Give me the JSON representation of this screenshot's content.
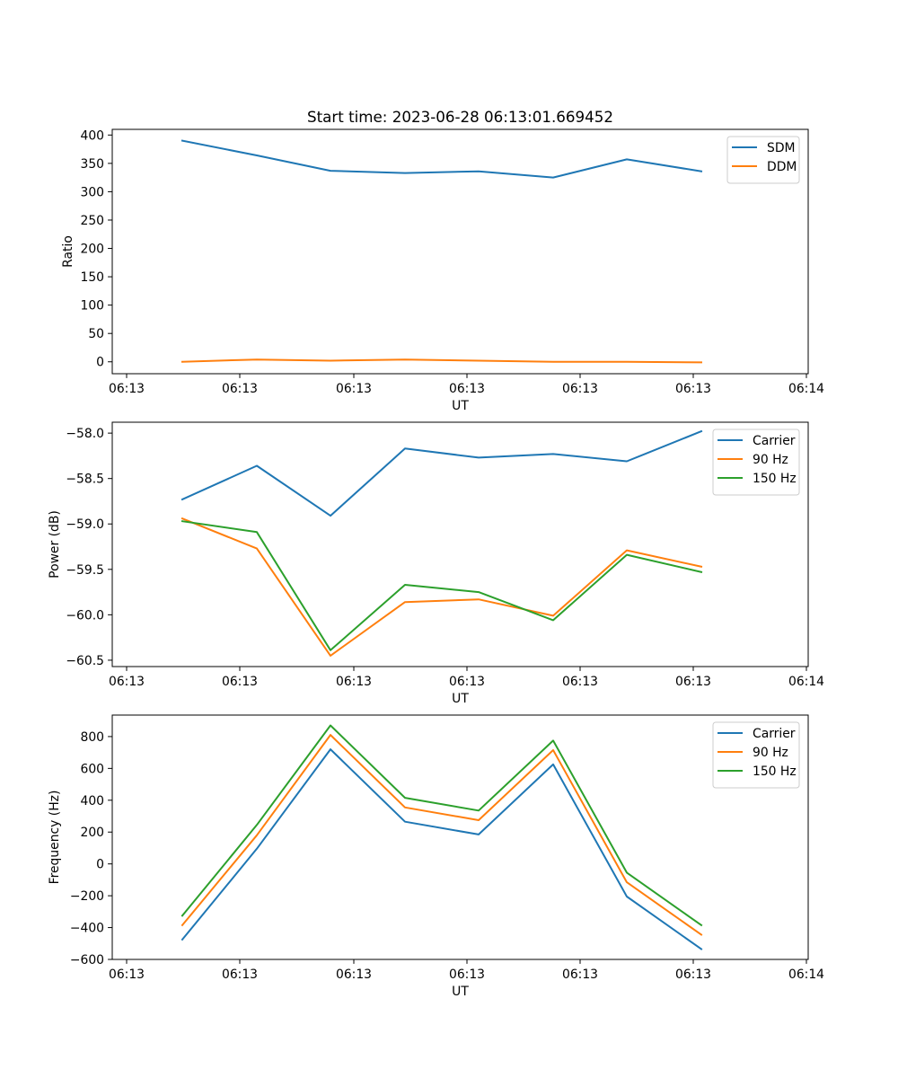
{
  "chart_data": [
    {
      "type": "line",
      "title": "Start time: 2023-06-28 06:13:01.669452",
      "xlabel": "UT",
      "ylabel": "Ratio",
      "x_tick_labels": [
        "06:13",
        "06:13",
        "06:13",
        "06:13",
        "06:13",
        "06:13",
        "06:14"
      ],
      "y_ticks": [
        0,
        50,
        100,
        150,
        200,
        250,
        300,
        350,
        400
      ],
      "ylim": [
        -21,
        410
      ],
      "grid": false,
      "legend_position": "top-right",
      "series": [
        {
          "name": "SDM",
          "color": "#1f77b4",
          "values": [
            390,
            364,
            337,
            333,
            336,
            325,
            357,
            336
          ]
        },
        {
          "name": "DDM",
          "color": "#ff7f0e",
          "values": [
            0,
            4,
            2,
            4,
            2,
            0,
            0,
            -1
          ]
        }
      ]
    },
    {
      "type": "line",
      "title": "",
      "xlabel": "UT",
      "ylabel": "Power (dB)",
      "x_tick_labels": [
        "06:13",
        "06:13",
        "06:13",
        "06:13",
        "06:13",
        "06:13",
        "06:14"
      ],
      "y_ticks": [
        -60.5,
        -60.0,
        -59.5,
        -59.0,
        -58.5,
        -58.0
      ],
      "y_tick_labels": [
        "−60.5",
        "−60.0",
        "−59.5",
        "−59.0",
        "−58.5",
        "−58.0"
      ],
      "ylim": [
        -60.57,
        -57.88
      ],
      "grid": false,
      "legend_position": "top-right",
      "series": [
        {
          "name": "Carrier",
          "color": "#1f77b4",
          "values": [
            -58.73,
            -58.36,
            -58.91,
            -58.17,
            -58.27,
            -58.23,
            -58.31,
            -57.98
          ]
        },
        {
          "name": "90 Hz",
          "color": "#ff7f0e",
          "values": [
            -58.94,
            -59.27,
            -60.45,
            -59.86,
            -59.83,
            -60.01,
            -59.29,
            -59.47
          ]
        },
        {
          "name": "150 Hz",
          "color": "#2ca02c",
          "values": [
            -58.97,
            -59.09,
            -60.39,
            -59.67,
            -59.75,
            -60.06,
            -59.34,
            -59.53
          ]
        }
      ]
    },
    {
      "type": "line",
      "title": "",
      "xlabel": "UT",
      "ylabel": "Frequency (Hz)",
      "x_tick_labels": [
        "06:13",
        "06:13",
        "06:13",
        "06:13",
        "06:13",
        "06:13",
        "06:14"
      ],
      "y_ticks": [
        -600,
        -400,
        -200,
        0,
        200,
        400,
        600,
        800
      ],
      "y_tick_labels": [
        "−600",
        "−400",
        "−200",
        "0",
        "200",
        "400",
        "600",
        "800"
      ],
      "ylim": [
        -600,
        935
      ],
      "grid": false,
      "legend_position": "top-right",
      "series": [
        {
          "name": "Carrier",
          "color": "#1f77b4",
          "values": [
            -475,
            95,
            720,
            265,
            185,
            625,
            -205,
            -535
          ]
        },
        {
          "name": "90 Hz",
          "color": "#ff7f0e",
          "values": [
            -385,
            180,
            810,
            355,
            275,
            715,
            -115,
            -445
          ]
        },
        {
          "name": "150 Hz",
          "color": "#2ca02c",
          "values": [
            -325,
            245,
            870,
            415,
            335,
            775,
            -55,
            -385
          ]
        }
      ]
    }
  ]
}
